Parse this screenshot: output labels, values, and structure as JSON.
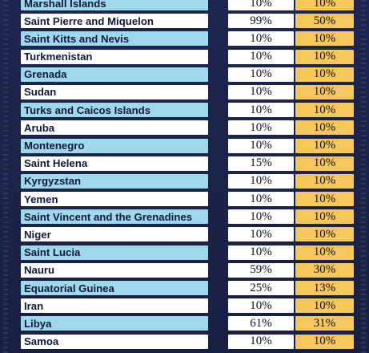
{
  "rows": [
    {
      "name": "Marshall Islands",
      "v1": "10%",
      "v2": "10%",
      "style": "blue"
    },
    {
      "name": "Saint Pierre and Miquelon",
      "v1": "99%",
      "v2": "50%",
      "style": "white"
    },
    {
      "name": "Saint Kitts and Nevis",
      "v1": "10%",
      "v2": "10%",
      "style": "blue"
    },
    {
      "name": "Turkmenistan",
      "v1": "10%",
      "v2": "10%",
      "style": "white"
    },
    {
      "name": "Grenada",
      "v1": "10%",
      "v2": "10%",
      "style": "blue"
    },
    {
      "name": "Sudan",
      "v1": "10%",
      "v2": "10%",
      "style": "white"
    },
    {
      "name": "Turks and Caicos Islands",
      "v1": "10%",
      "v2": "10%",
      "style": "blue"
    },
    {
      "name": "Aruba",
      "v1": "10%",
      "v2": "10%",
      "style": "white"
    },
    {
      "name": "Montenegro",
      "v1": "10%",
      "v2": "10%",
      "style": "blue"
    },
    {
      "name": "Saint Helena",
      "v1": "15%",
      "v2": "10%",
      "style": "white"
    },
    {
      "name": "Kyrgyzstan",
      "v1": "10%",
      "v2": "10%",
      "style": "blue"
    },
    {
      "name": "Yemen",
      "v1": "10%",
      "v2": "10%",
      "style": "white"
    },
    {
      "name": "Saint Vincent and the Grenadines",
      "v1": "10%",
      "v2": "10%",
      "style": "blue"
    },
    {
      "name": "Niger",
      "v1": "10%",
      "v2": "10%",
      "style": "white"
    },
    {
      "name": "Saint Lucia",
      "v1": "10%",
      "v2": "10%",
      "style": "blue"
    },
    {
      "name": "Nauru",
      "v1": "59%",
      "v2": "30%",
      "style": "white"
    },
    {
      "name": "Equatorial Guinea",
      "v1": "25%",
      "v2": "13%",
      "style": "blue"
    },
    {
      "name": "Iran",
      "v1": "10%",
      "v2": "10%",
      "style": "white"
    },
    {
      "name": "Libya",
      "v1": "61%",
      "v2": "31%",
      "style": "blue"
    },
    {
      "name": "Samoa",
      "v1": "10%",
      "v2": "10%",
      "style": "white"
    }
  ],
  "colors": {
    "background": "#1b2447",
    "row_blue": "#9fd7ec",
    "row_white": "#ffffff",
    "tariff_cell": "#ffffff",
    "reciprocal_cell": "#f6c75a"
  }
}
